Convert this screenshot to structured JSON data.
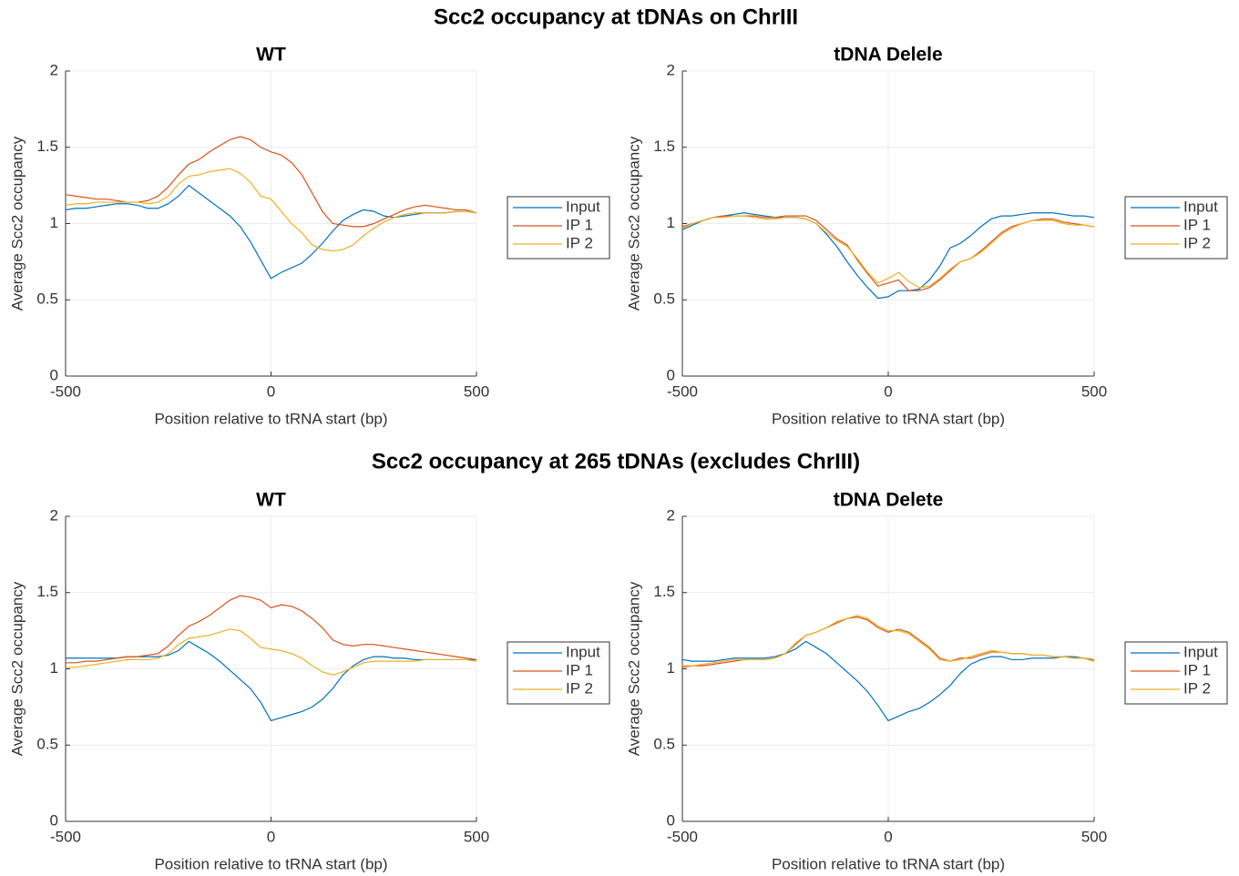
{
  "section_titles": [
    "Scc2 occupancy at tDNAs on ChrIII",
    "Scc2 occupancy at 265 tDNAs (excludes ChrIII)"
  ],
  "chart_data": [
    {
      "type": "line",
      "title": "WT",
      "xlabel": "Position relative to tRNA start (bp)",
      "ylabel": "Average Scc2 occupancy",
      "x": [
        -500,
        -475,
        -450,
        -425,
        -400,
        -375,
        -350,
        -325,
        -300,
        -275,
        -250,
        -225,
        -200,
        -175,
        -150,
        -125,
        -100,
        -75,
        -50,
        -25,
        0,
        25,
        50,
        75,
        100,
        125,
        150,
        175,
        200,
        225,
        250,
        275,
        300,
        325,
        350,
        375,
        400,
        425,
        450,
        475,
        500
      ],
      "series": [
        {
          "name": "Input",
          "color": "#0072bd",
          "values": [
            1.09,
            1.1,
            1.1,
            1.11,
            1.12,
            1.13,
            1.13,
            1.12,
            1.1,
            1.1,
            1.13,
            1.18,
            1.25,
            1.2,
            1.15,
            1.1,
            1.05,
            0.98,
            0.88,
            0.76,
            0.64,
            0.68,
            0.71,
            0.74,
            0.8,
            0.87,
            0.95,
            1.02,
            1.06,
            1.09,
            1.08,
            1.05,
            1.04,
            1.05,
            1.06,
            1.07,
            1.07,
            1.07,
            1.08,
            1.08,
            1.07
          ]
        },
        {
          "name": "IP 1",
          "color": "#d95319",
          "values": [
            1.19,
            1.18,
            1.17,
            1.16,
            1.16,
            1.15,
            1.14,
            1.14,
            1.15,
            1.18,
            1.24,
            1.32,
            1.39,
            1.42,
            1.47,
            1.51,
            1.55,
            1.57,
            1.55,
            1.5,
            1.47,
            1.45,
            1.4,
            1.32,
            1.2,
            1.08,
            1.0,
            0.99,
            0.98,
            0.98,
            1.0,
            1.03,
            1.06,
            1.09,
            1.11,
            1.12,
            1.11,
            1.1,
            1.09,
            1.09,
            1.07
          ]
        },
        {
          "name": "IP 2",
          "color": "#edb120",
          "values": [
            1.12,
            1.13,
            1.13,
            1.14,
            1.14,
            1.14,
            1.14,
            1.14,
            1.13,
            1.14,
            1.18,
            1.26,
            1.31,
            1.32,
            1.34,
            1.35,
            1.36,
            1.33,
            1.27,
            1.18,
            1.16,
            1.08,
            1.0,
            0.94,
            0.86,
            0.83,
            0.82,
            0.83,
            0.86,
            0.92,
            0.97,
            1.01,
            1.04,
            1.06,
            1.07,
            1.07,
            1.07,
            1.07,
            1.08,
            1.08,
            1.07
          ]
        }
      ],
      "xlim": [
        -500,
        500
      ],
      "ylim": [
        0,
        2
      ],
      "xticks": [
        -500,
        0,
        500
      ],
      "yticks": [
        0,
        0.5,
        1,
        1.5,
        2
      ],
      "grid": true,
      "legend": "right"
    },
    {
      "type": "line",
      "title": "tDNA Delele",
      "xlabel": "Position relative to tRNA start (bp)",
      "ylabel": "Average Scc2 occupancy",
      "x": [
        -500,
        -475,
        -450,
        -425,
        -400,
        -375,
        -350,
        -325,
        -300,
        -275,
        -250,
        -225,
        -200,
        -175,
        -150,
        -125,
        -100,
        -75,
        -50,
        -25,
        0,
        25,
        50,
        75,
        100,
        125,
        150,
        175,
        200,
        225,
        250,
        275,
        300,
        325,
        350,
        375,
        400,
        425,
        450,
        475,
        500
      ],
      "series": [
        {
          "name": "Input",
          "color": "#0072bd",
          "values": [
            0.96,
            0.99,
            1.02,
            1.04,
            1.05,
            1.06,
            1.07,
            1.06,
            1.05,
            1.04,
            1.04,
            1.04,
            1.03,
            1.0,
            0.93,
            0.85,
            0.75,
            0.66,
            0.58,
            0.51,
            0.52,
            0.56,
            0.56,
            0.57,
            0.63,
            0.72,
            0.84,
            0.87,
            0.92,
            0.98,
            1.03,
            1.05,
            1.05,
            1.06,
            1.07,
            1.07,
            1.07,
            1.06,
            1.05,
            1.05,
            1.04
          ]
        },
        {
          "name": "IP 1",
          "color": "#d95319",
          "values": [
            0.98,
            1.0,
            1.02,
            1.04,
            1.05,
            1.05,
            1.05,
            1.05,
            1.04,
            1.04,
            1.05,
            1.05,
            1.05,
            1.02,
            0.96,
            0.9,
            0.86,
            0.76,
            0.67,
            0.59,
            0.61,
            0.63,
            0.56,
            0.56,
            0.58,
            0.63,
            0.69,
            0.75,
            0.77,
            0.82,
            0.88,
            0.94,
            0.98,
            1.0,
            1.02,
            1.03,
            1.03,
            1.01,
            1.0,
            0.99,
            0.98
          ]
        },
        {
          "name": "IP 2",
          "color": "#edb120",
          "values": [
            0.97,
            1.0,
            1.02,
            1.04,
            1.04,
            1.05,
            1.05,
            1.04,
            1.03,
            1.03,
            1.04,
            1.04,
            1.03,
            1.0,
            0.94,
            0.89,
            0.85,
            0.77,
            0.68,
            0.61,
            0.64,
            0.68,
            0.62,
            0.58,
            0.59,
            0.64,
            0.7,
            0.75,
            0.77,
            0.81,
            0.87,
            0.93,
            0.97,
            1.0,
            1.02,
            1.02,
            1.02,
            1.0,
            0.99,
            0.99,
            0.98
          ]
        }
      ],
      "xlim": [
        -500,
        500
      ],
      "ylim": [
        0,
        2
      ],
      "xticks": [
        -500,
        0,
        500
      ],
      "yticks": [
        0,
        0.5,
        1,
        1.5,
        2
      ],
      "grid": true,
      "legend": "right"
    },
    {
      "type": "line",
      "title": "WT",
      "xlabel": "Position relative to tRNA start (bp)",
      "ylabel": "Average Scc2 occupancy",
      "x": [
        -500,
        -475,
        -450,
        -425,
        -400,
        -375,
        -350,
        -325,
        -300,
        -275,
        -250,
        -225,
        -200,
        -175,
        -150,
        -125,
        -100,
        -75,
        -50,
        -25,
        0,
        25,
        50,
        75,
        100,
        125,
        150,
        175,
        200,
        225,
        250,
        275,
        300,
        325,
        350,
        375,
        400,
        425,
        450,
        475,
        500
      ],
      "series": [
        {
          "name": "Input",
          "color": "#0072bd",
          "values": [
            1.07,
            1.07,
            1.07,
            1.07,
            1.07,
            1.07,
            1.08,
            1.08,
            1.08,
            1.08,
            1.09,
            1.12,
            1.18,
            1.14,
            1.1,
            1.05,
            0.99,
            0.93,
            0.87,
            0.78,
            0.66,
            0.68,
            0.7,
            0.72,
            0.75,
            0.8,
            0.87,
            0.96,
            1.02,
            1.06,
            1.08,
            1.08,
            1.07,
            1.07,
            1.06,
            1.06,
            1.06,
            1.06,
            1.06,
            1.06,
            1.06
          ]
        },
        {
          "name": "IP 1",
          "color": "#d95319",
          "values": [
            1.04,
            1.04,
            1.05,
            1.05,
            1.06,
            1.07,
            1.08,
            1.08,
            1.09,
            1.1,
            1.15,
            1.22,
            1.28,
            1.31,
            1.35,
            1.4,
            1.45,
            1.48,
            1.47,
            1.45,
            1.4,
            1.42,
            1.41,
            1.38,
            1.33,
            1.27,
            1.19,
            1.16,
            1.15,
            1.16,
            1.16,
            1.15,
            1.14,
            1.13,
            1.12,
            1.11,
            1.1,
            1.09,
            1.08,
            1.07,
            1.06
          ]
        },
        {
          "name": "IP 2",
          "color": "#edb120",
          "values": [
            1.01,
            1.01,
            1.02,
            1.03,
            1.04,
            1.05,
            1.06,
            1.06,
            1.06,
            1.07,
            1.1,
            1.16,
            1.2,
            1.21,
            1.22,
            1.24,
            1.26,
            1.25,
            1.2,
            1.14,
            1.13,
            1.12,
            1.1,
            1.07,
            1.02,
            0.98,
            0.96,
            0.98,
            1.01,
            1.04,
            1.05,
            1.05,
            1.05,
            1.05,
            1.05,
            1.06,
            1.06,
            1.06,
            1.06,
            1.06,
            1.05
          ]
        }
      ],
      "xlim": [
        -500,
        500
      ],
      "ylim": [
        0,
        2
      ],
      "xticks": [
        -500,
        0,
        500
      ],
      "yticks": [
        0,
        0.5,
        1,
        1.5,
        2
      ],
      "grid": true,
      "legend": "right"
    },
    {
      "type": "line",
      "title": "tDNA Delete",
      "xlabel": "Position relative to tRNA start (bp)",
      "ylabel": "Average Scc2 occupancy",
      "x": [
        -500,
        -475,
        -450,
        -425,
        -400,
        -375,
        -350,
        -325,
        -300,
        -275,
        -250,
        -225,
        -200,
        -175,
        -150,
        -125,
        -100,
        -75,
        -50,
        -25,
        0,
        25,
        50,
        75,
        100,
        125,
        150,
        175,
        200,
        225,
        250,
        275,
        300,
        325,
        350,
        375,
        400,
        425,
        450,
        475,
        500
      ],
      "series": [
        {
          "name": "Input",
          "color": "#0072bd",
          "values": [
            1.06,
            1.05,
            1.05,
            1.05,
            1.06,
            1.07,
            1.07,
            1.07,
            1.07,
            1.08,
            1.1,
            1.13,
            1.18,
            1.14,
            1.1,
            1.04,
            0.98,
            0.92,
            0.85,
            0.76,
            0.66,
            0.69,
            0.72,
            0.74,
            0.78,
            0.83,
            0.89,
            0.97,
            1.03,
            1.06,
            1.08,
            1.08,
            1.06,
            1.06,
            1.07,
            1.07,
            1.07,
            1.08,
            1.08,
            1.07,
            1.05
          ]
        },
        {
          "name": "IP 1",
          "color": "#d95319",
          "values": [
            1.01,
            1.02,
            1.02,
            1.03,
            1.04,
            1.05,
            1.06,
            1.06,
            1.06,
            1.07,
            1.1,
            1.16,
            1.22,
            1.24,
            1.27,
            1.3,
            1.33,
            1.34,
            1.32,
            1.27,
            1.24,
            1.26,
            1.24,
            1.19,
            1.14,
            1.07,
            1.05,
            1.07,
            1.07,
            1.09,
            1.11,
            1.11,
            1.1,
            1.1,
            1.09,
            1.09,
            1.08,
            1.08,
            1.07,
            1.07,
            1.06
          ]
        },
        {
          "name": "IP 2",
          "color": "#edb120",
          "values": [
            1.02,
            1.02,
            1.03,
            1.04,
            1.05,
            1.06,
            1.06,
            1.06,
            1.06,
            1.07,
            1.1,
            1.17,
            1.22,
            1.24,
            1.27,
            1.31,
            1.33,
            1.35,
            1.33,
            1.28,
            1.25,
            1.25,
            1.23,
            1.18,
            1.13,
            1.06,
            1.05,
            1.06,
            1.08,
            1.1,
            1.12,
            1.11,
            1.1,
            1.1,
            1.09,
            1.09,
            1.08,
            1.08,
            1.07,
            1.07,
            1.05
          ]
        }
      ],
      "xlim": [
        -500,
        500
      ],
      "ylim": [
        0,
        2
      ],
      "xticks": [
        -500,
        0,
        500
      ],
      "yticks": [
        0,
        0.5,
        1,
        1.5,
        2
      ],
      "grid": true,
      "legend": "right"
    }
  ]
}
